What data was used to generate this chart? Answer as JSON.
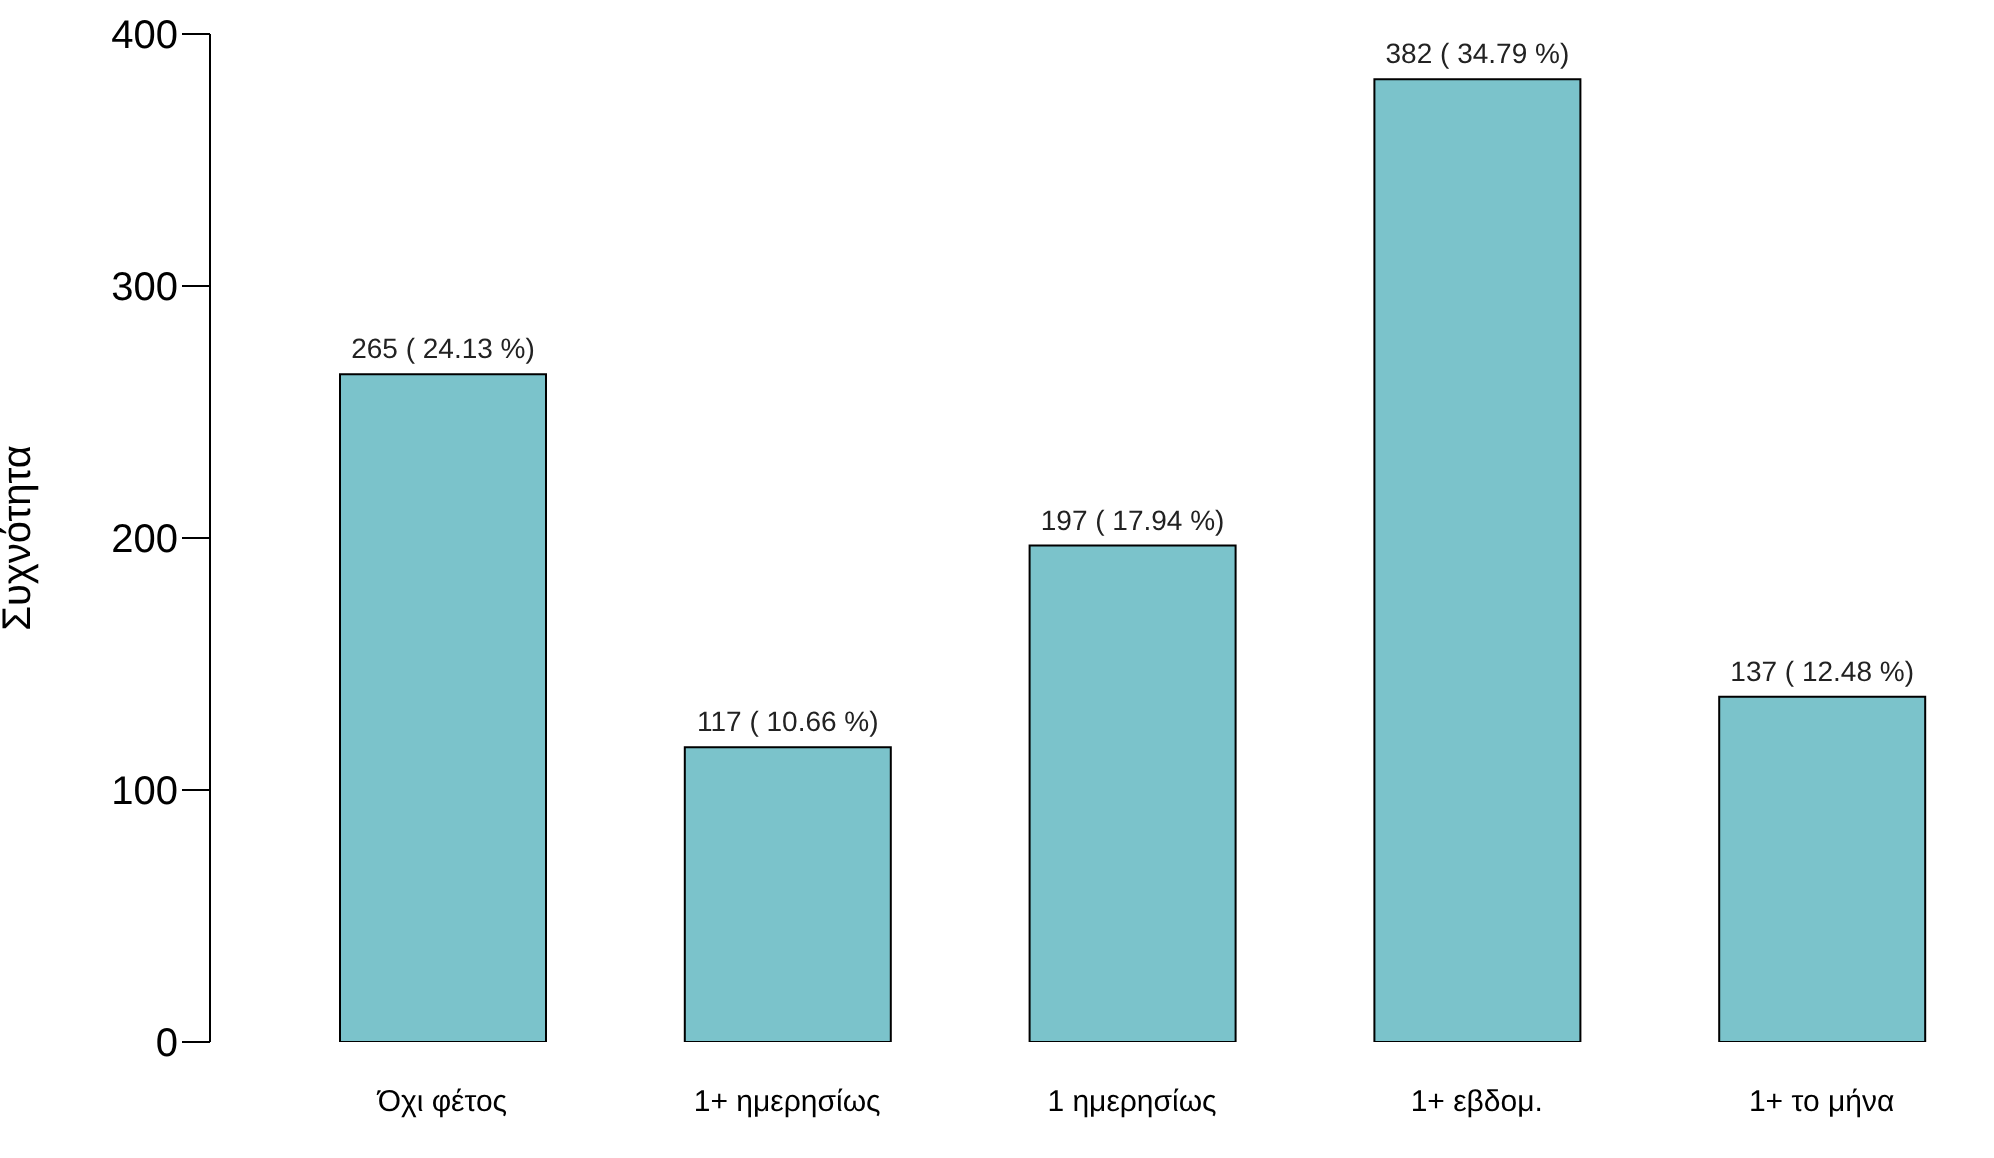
{
  "chart_data": {
    "type": "bar",
    "ylabel": "Συχνότητα",
    "categories": [
      "Όχι φέτος",
      "1+ ημερησίως",
      "1 ημερησίως",
      "1+ εβδομ.",
      "1+ το μήνα"
    ],
    "values": [
      265,
      117,
      197,
      382,
      137
    ],
    "value_labels": [
      "265 ( 24.13 %)",
      "117 ( 10.66 %)",
      "197 ( 17.94 %)",
      "382 ( 34.79 %)",
      "137 ( 12.48 %)"
    ],
    "color": "#7bc3cb",
    "ylim": [
      0,
      400
    ],
    "yticks": [
      0,
      100,
      200,
      300,
      400
    ],
    "grid": false,
    "legend": false
  }
}
